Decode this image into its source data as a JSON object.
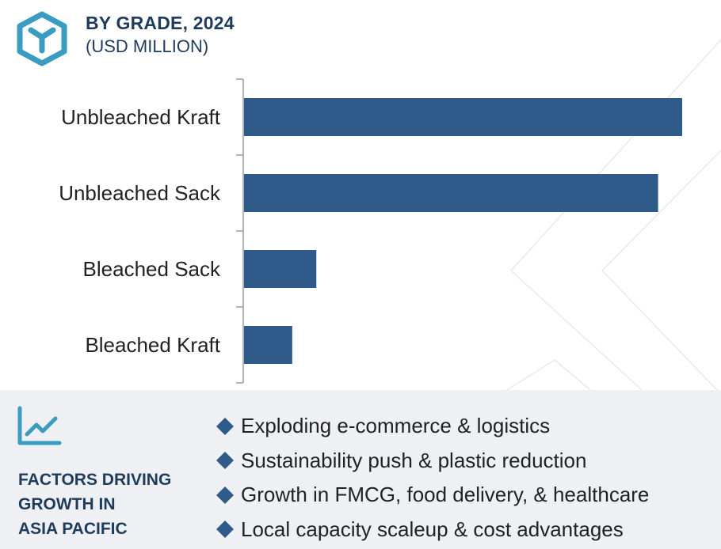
{
  "header": {
    "title": "BY GRADE, 2024",
    "subtitle": "(USD MILLION)",
    "logo_icon": "cube-logo-icon"
  },
  "colors": {
    "bar": "#2e5b8a",
    "title_text": "#1f3b5c",
    "accent": "#3a9cc1",
    "footer_bg": "#eff0f3",
    "axis": "#9a9a9a"
  },
  "chart_data": {
    "type": "bar",
    "orientation": "horizontal",
    "title": "BY GRADE, 2024",
    "subtitle": "(USD MILLION)",
    "categories": [
      "Unbleached Kraft",
      "Unbleached Sack",
      "Bleached Sack",
      "Bleached Kraft"
    ],
    "values": [
      100,
      94.5,
      16.5,
      11
    ],
    "xlim": [
      0,
      100
    ],
    "xlabel": "",
    "ylabel": "",
    "grid": false,
    "legend": "none"
  },
  "factors": {
    "icon": "trend-chart-icon",
    "title_lines": [
      "FACTORS DRIVING",
      "GROWTH IN",
      "ASIA PACIFIC"
    ],
    "items": [
      "Exploding e-commerce & logistics",
      "Sustainability push & plastic reduction",
      "Growth in FMCG, food delivery, & healthcare",
      "Local capacity scaleup & cost advantages"
    ]
  }
}
